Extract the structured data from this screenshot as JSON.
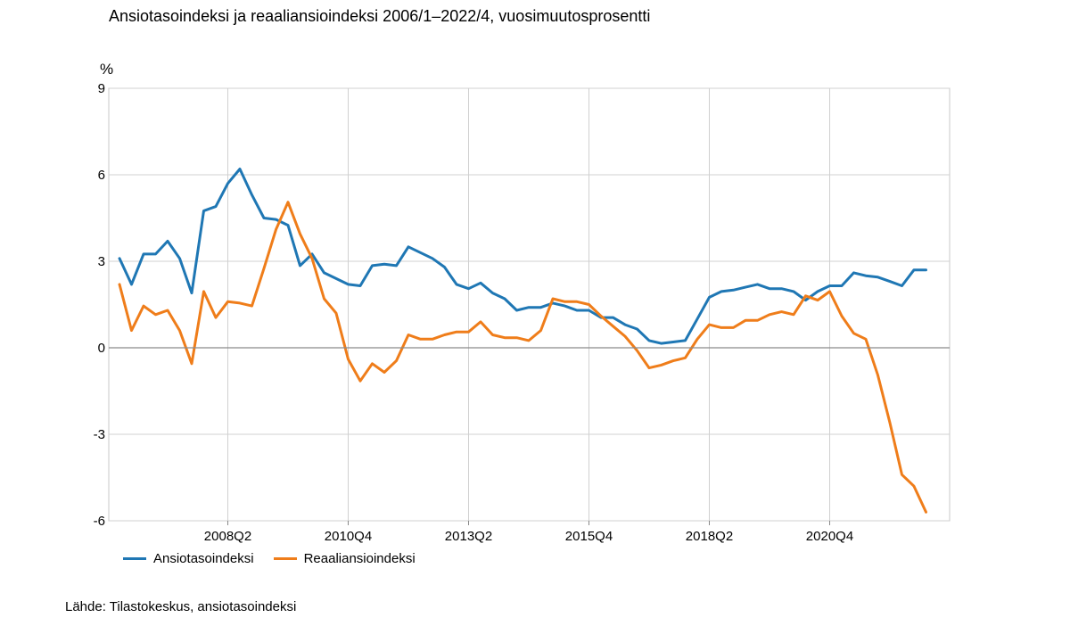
{
  "chart_data": {
    "type": "line",
    "title": "Ansiotasoindeksi ja reaaliansioindeksi 2006/1–2022/4, vuosimuutosprosentti",
    "ylabel": "%",
    "xlabel": "",
    "ylim": [
      -6,
      9
    ],
    "yticks": [
      "9",
      "6",
      "3",
      "0",
      "-3",
      "-6"
    ],
    "x_tick_labels": [
      "2008Q2",
      "2010Q4",
      "2013Q2",
      "2015Q4",
      "2018Q2",
      "2020Q4"
    ],
    "x_tick_positions": [
      "2008Q2",
      "2010Q4",
      "2013Q2",
      "2015Q4",
      "2018Q2",
      "2020Q4"
    ],
    "grid": true,
    "legend_position": "bottom-left",
    "colors": {
      "Ansiotasoindeksi": "#1f77b4",
      "Reaaliansioindeksi": "#ef7d1a"
    },
    "categories": [
      "2006Q1",
      "2006Q2",
      "2006Q3",
      "2006Q4",
      "2007Q1",
      "2007Q2",
      "2007Q3",
      "2007Q4",
      "2008Q1",
      "2008Q2",
      "2008Q3",
      "2008Q4",
      "2009Q1",
      "2009Q2",
      "2009Q3",
      "2009Q4",
      "2010Q1",
      "2010Q2",
      "2010Q3",
      "2010Q4",
      "2011Q1",
      "2011Q2",
      "2011Q3",
      "2011Q4",
      "2012Q1",
      "2012Q2",
      "2012Q3",
      "2012Q4",
      "2013Q1",
      "2013Q2",
      "2013Q3",
      "2013Q4",
      "2014Q1",
      "2014Q2",
      "2014Q3",
      "2014Q4",
      "2015Q1",
      "2015Q2",
      "2015Q3",
      "2015Q4",
      "2016Q1",
      "2016Q2",
      "2016Q3",
      "2016Q4",
      "2017Q1",
      "2017Q2",
      "2017Q3",
      "2017Q4",
      "2018Q1",
      "2018Q2",
      "2018Q3",
      "2018Q4",
      "2019Q1",
      "2019Q2",
      "2019Q3",
      "2019Q4",
      "2020Q1",
      "2020Q2",
      "2020Q3",
      "2020Q4",
      "2021Q1",
      "2021Q2",
      "2021Q3",
      "2021Q4",
      "2022Q1",
      "2022Q2",
      "2022Q3",
      "2022Q4"
    ],
    "series": [
      {
        "name": "Ansiotasoindeksi",
        "values": [
          3.1,
          2.2,
          3.25,
          3.25,
          3.7,
          3.1,
          1.9,
          4.75,
          4.9,
          5.7,
          6.2,
          5.3,
          4.5,
          4.45,
          4.25,
          2.85,
          3.25,
          2.6,
          2.4,
          2.2,
          2.15,
          2.85,
          2.9,
          2.85,
          3.5,
          3.3,
          3.1,
          2.8,
          2.2,
          2.05,
          2.25,
          1.9,
          1.7,
          1.3,
          1.4,
          1.4,
          1.55,
          1.45,
          1.3,
          1.3,
          1.05,
          1.05,
          0.8,
          0.65,
          0.25,
          0.15,
          0.2,
          0.25,
          1.0,
          1.75,
          1.95,
          2.0,
          2.1,
          2.2,
          2.05,
          2.05,
          1.95,
          1.65,
          1.95,
          2.15,
          2.15,
          2.6,
          2.5,
          2.45,
          2.3,
          2.15,
          2.7,
          2.7
        ]
      },
      {
        "name": "Reaaliansioindeksi",
        "values": [
          2.2,
          0.6,
          1.45,
          1.15,
          1.3,
          0.6,
          -0.55,
          1.95,
          1.05,
          1.6,
          1.55,
          1.45,
          2.75,
          4.1,
          5.05,
          3.95,
          3.1,
          1.7,
          1.2,
          -0.4,
          -1.15,
          -0.55,
          -0.85,
          -0.45,
          0.45,
          0.3,
          0.3,
          0.45,
          0.55,
          0.55,
          0.9,
          0.45,
          0.35,
          0.35,
          0.25,
          0.6,
          1.7,
          1.6,
          1.6,
          1.5,
          1.1,
          0.75,
          0.4,
          -0.1,
          -0.7,
          -0.6,
          -0.45,
          -0.35,
          0.3,
          0.8,
          0.7,
          0.7,
          0.95,
          0.95,
          1.15,
          1.25,
          1.15,
          1.8,
          1.65,
          1.95,
          1.1,
          0.5,
          0.3,
          -0.95,
          -2.6,
          -4.4,
          -4.8,
          -5.7
        ]
      }
    ]
  },
  "source_text": "Lähde: Tilastokeskus, ansiotasoindeksi"
}
